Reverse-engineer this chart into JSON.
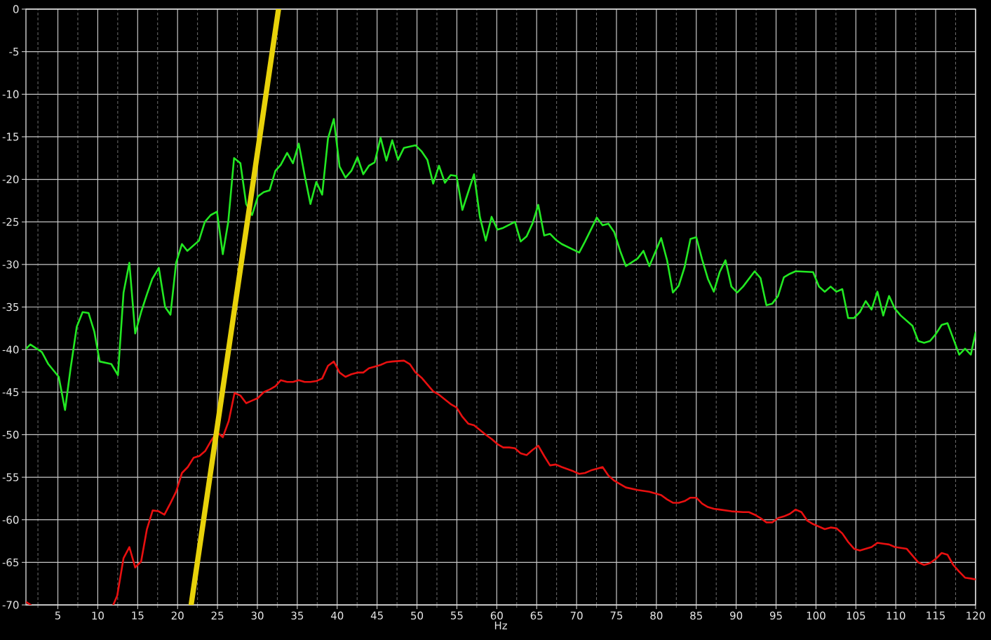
{
  "chart_data": {
    "type": "line",
    "xlabel": "Hz",
    "xlim": [
      1,
      120
    ],
    "ylim": [
      -70,
      0
    ],
    "xticks": [
      {
        "value": 2.5,
        "label": null
      },
      5,
      {
        "value": 7.5,
        "label": null
      },
      10,
      {
        "value": 12.5,
        "label": null
      },
      15,
      {
        "value": 17.5,
        "label": null
      },
      20,
      {
        "value": 22.5,
        "label": null
      },
      25,
      {
        "value": 27.5,
        "label": null
      },
      30,
      {
        "value": 32.5,
        "label": null
      },
      35,
      {
        "value": 37.5,
        "label": null
      },
      40,
      {
        "value": 42.5,
        "label": null
      },
      45,
      {
        "value": 47.5,
        "label": null
      },
      50,
      {
        "value": 52.5,
        "label": null
      },
      55,
      {
        "value": 57.5,
        "label": null
      },
      60,
      {
        "value": 62.5,
        "label": null
      },
      65,
      {
        "value": 67.5,
        "label": null
      },
      70,
      {
        "value": 72.5,
        "label": null
      },
      75,
      {
        "value": 77.5,
        "label": null
      },
      80,
      {
        "value": 82.5,
        "label": null
      },
      85,
      {
        "value": 87.5,
        "label": null
      },
      90,
      {
        "value": 92.5,
        "label": null
      },
      95,
      {
        "value": 97.5,
        "label": null
      },
      100,
      {
        "value": 102.5,
        "label": null
      },
      105,
      {
        "value": 107.5,
        "label": null
      },
      110,
      {
        "value": 112.5,
        "label": null
      },
      115,
      {
        "value": 117.5,
        "label": null
      },
      120
    ],
    "yticks": [
      0,
      -5,
      -10,
      -15,
      -20,
      -25,
      -30,
      -35,
      -40,
      -45,
      -50,
      -55,
      -60,
      -65,
      -70
    ],
    "grid": true,
    "series": [
      {
        "color": "#22e822",
        "x": [
          1.02,
          1.55,
          3.0,
          3.8,
          5.11,
          5.9,
          6.58,
          7.37,
          8.1,
          8.84,
          9.57,
          10.24,
          11.7,
          12.53,
          13.23,
          13.96,
          14.69,
          15.43,
          16.16,
          16.83,
          17.65,
          18.44,
          19.11,
          19.82,
          20.55,
          21.22,
          22.68,
          23.42,
          24.15,
          24.94,
          25.67,
          26.35,
          27.08,
          27.87,
          28.6,
          29.33,
          30.06,
          30.8,
          31.53,
          32.26,
          32.93,
          33.73,
          34.46,
          35.19,
          35.92,
          36.65,
          37.39,
          38.12,
          38.85,
          39.58,
          40.3,
          41.04,
          41.78,
          42.54,
          43.27,
          43.98,
          44.7,
          45.44,
          46.17,
          46.9,
          47.63,
          48.37,
          49.83,
          50.57,
          51.3,
          52.03,
          52.76,
          53.5,
          54.22,
          54.96,
          55.69,
          56.42,
          57.15,
          57.88,
          58.62,
          59.35,
          60.08,
          60.81,
          62.28,
          63.0,
          63.74,
          64.47,
          65.2,
          65.94,
          66.67,
          67.4,
          68.14,
          70.33,
          71.06,
          71.8,
          72.53,
          73.26,
          73.99,
          74.72,
          75.46,
          76.18,
          77.65,
          78.38,
          79.12,
          80.6,
          81.34,
          82.07,
          82.8,
          83.54,
          84.27,
          85.0,
          85.73,
          86.46,
          87.2,
          87.93,
          88.66,
          89.4,
          90.13,
          90.86,
          92.32,
          93.05,
          93.79,
          94.52,
          95.25,
          95.98,
          96.72,
          97.45,
          99.64,
          100.38,
          101.1,
          101.84,
          102.57,
          103.3,
          104.03,
          104.77,
          105.5,
          106.23,
          106.97,
          107.7,
          108.43,
          109.16,
          109.89,
          110.62,
          112.09,
          112.82,
          113.55,
          114.28,
          115.0,
          115.75,
          116.48,
          117.2,
          117.95,
          118.68,
          119.4,
          120.0
        ],
        "values": [
          -39.9,
          -39.4,
          -40.3,
          -41.7,
          -43.2,
          -47.1,
          -42.3,
          -37.3,
          -35.6,
          -35.7,
          -37.9,
          -41.4,
          -41.7,
          -43.0,
          -33.3,
          -29.8,
          -38.1,
          -35.6,
          -33.5,
          -31.7,
          -30.4,
          -35.0,
          -35.9,
          -29.8,
          -27.6,
          -28.4,
          -27.2,
          -25.0,
          -24.2,
          -23.8,
          -28.8,
          -25.0,
          -17.5,
          -18.1,
          -22.9,
          -24.2,
          -22.0,
          -21.5,
          -21.3,
          -19.0,
          -18.3,
          -16.9,
          -18.1,
          -15.8,
          -19.5,
          -22.9,
          -20.3,
          -21.8,
          -15.2,
          -12.9,
          -18.5,
          -19.8,
          -19.0,
          -17.4,
          -19.4,
          -18.4,
          -18.0,
          -15.1,
          -17.8,
          -15.4,
          -17.7,
          -16.3,
          -16.0,
          -16.7,
          -17.7,
          -20.5,
          -18.4,
          -20.4,
          -19.5,
          -19.6,
          -23.6,
          -21.5,
          -19.4,
          -24.4,
          -27.2,
          -24.4,
          -25.9,
          -25.7,
          -25.0,
          -27.3,
          -26.7,
          -25.2,
          -23.0,
          -26.6,
          -26.4,
          -27.1,
          -27.6,
          -28.6,
          -27.3,
          -25.9,
          -24.5,
          -25.4,
          -25.2,
          -26.2,
          -28.4,
          -30.2,
          -29.3,
          -28.4,
          -30.2,
          -26.9,
          -29.5,
          -33.3,
          -32.5,
          -30.3,
          -27.0,
          -26.8,
          -29.4,
          -31.7,
          -33.2,
          -30.9,
          -29.5,
          -32.6,
          -33.3,
          -32.6,
          -30.8,
          -31.6,
          -34.8,
          -34.6,
          -33.7,
          -31.5,
          -31.1,
          -30.8,
          -30.9,
          -32.6,
          -33.2,
          -32.6,
          -33.2,
          -32.9,
          -36.3,
          -36.3,
          -35.6,
          -34.3,
          -35.3,
          -33.2,
          -36.0,
          -33.7,
          -35.2,
          -36.0,
          -37.2,
          -39.0,
          -39.2,
          -39.0,
          -38.2,
          -37.1,
          -36.9,
          -38.7,
          -40.6,
          -39.9,
          -40.6,
          -38.0
        ]
      },
      {
        "color": "#e81010",
        "x": [
          1.1,
          1.6,
          6,
          11.94,
          12.44,
          13.23,
          13.96,
          14.69,
          15.43,
          16.16,
          16.88,
          17.62,
          18.35,
          19.08,
          19.82,
          20.55,
          21.28,
          22.02,
          22.74,
          23.48,
          24.21,
          24.94,
          25.67,
          26.41,
          27.14,
          27.87,
          28.6,
          29.33,
          30.06,
          30.8,
          31.53,
          32.26,
          32.93,
          33.73,
          34.46,
          35.19,
          35.92,
          36.65,
          37.39,
          38.12,
          38.85,
          39.58,
          40.3,
          41.04,
          41.78,
          42.54,
          43.27,
          43.98,
          44.7,
          45.44,
          46.17,
          46.9,
          48.37,
          49.1,
          49.83,
          50.57,
          51.3,
          52.03,
          52.76,
          54.22,
          54.96,
          55.69,
          56.42,
          57.15,
          58.62,
          59.35,
          60.08,
          60.81,
          61.55,
          62.28,
          63.0,
          63.74,
          64.47,
          65.2,
          65.94,
          66.67,
          67.4,
          68.14,
          69.6,
          70.33,
          71.06,
          71.8,
          72.53,
          73.26,
          73.99,
          74.72,
          75.46,
          76.18,
          77.65,
          78.38,
          79.12,
          80.6,
          81.34,
          82.07,
          82.8,
          83.54,
          84.27,
          85.0,
          85.73,
          86.46,
          87.2,
          87.93,
          89.4,
          90.86,
          91.59,
          92.32,
          93.05,
          93.79,
          94.52,
          95.25,
          95.98,
          96.72,
          97.45,
          98.18,
          98.91,
          99.64,
          101.1,
          101.84,
          102.57,
          103.3,
          104.03,
          104.77,
          105.5,
          106.23,
          106.97,
          107.7,
          108.43,
          109.16,
          109.89,
          111.36,
          112.09,
          112.82,
          113.55,
          114.28,
          115.0,
          115.75,
          116.48,
          117.2,
          117.95,
          118.68,
          119.4,
          120.0
        ],
        "values": [
          -69.7,
          -70,
          null,
          -70,
          -68.9,
          -64.5,
          -63.2,
          -65.6,
          -64.9,
          -61.1,
          -58.9,
          -59.0,
          -59.4,
          -58.1,
          -56.7,
          -54.5,
          -53.8,
          -52.7,
          -52.5,
          -51.9,
          -50.7,
          -49.7,
          -50.3,
          -48.4,
          -45.1,
          -45.4,
          -46.3,
          -46.0,
          -45.7,
          -45.0,
          -44.7,
          -44.3,
          -43.6,
          -43.8,
          -43.8,
          -43.6,
          -43.8,
          -43.8,
          -43.7,
          -43.4,
          -41.9,
          -41.4,
          -42.7,
          -43.2,
          -42.9,
          -42.7,
          -42.7,
          -42.2,
          -42.0,
          -41.8,
          -41.5,
          -41.4,
          -41.3,
          -41.7,
          -42.7,
          -43.3,
          -44.1,
          -44.9,
          -45.3,
          -46.4,
          -46.8,
          -47.9,
          -48.7,
          -48.9,
          -50.0,
          -50.5,
          -51.1,
          -51.5,
          -51.5,
          -51.6,
          -52.2,
          -52.4,
          -51.8,
          -51.3,
          -52.5,
          -53.6,
          -53.5,
          -53.8,
          -54.3,
          -54.6,
          -54.5,
          -54.2,
          -54.0,
          -53.8,
          -54.8,
          -55.4,
          -55.8,
          -56.2,
          -56.5,
          -56.6,
          -56.7,
          -57.1,
          -57.6,
          -58.0,
          -58.0,
          -57.8,
          -57.4,
          -57.4,
          -58.1,
          -58.5,
          -58.7,
          -58.8,
          -59.0,
          -59.1,
          -59.1,
          -59.4,
          -59.8,
          -60.3,
          -60.3,
          -59.8,
          -59.6,
          -59.3,
          -58.8,
          -59.1,
          -60.1,
          -60.5,
          -61.1,
          -60.9,
          -61.0,
          -61.6,
          -62.6,
          -63.4,
          -63.6,
          -63.4,
          -63.2,
          -62.7,
          -62.8,
          -62.9,
          -63.2,
          -63.4,
          -64.2,
          -65.0,
          -65.3,
          -65.1,
          -64.6,
          -63.9,
          -64.1,
          -65.3,
          -66.1,
          -66.8,
          -66.9,
          -67.0
        ]
      },
      {
        "color": "#e8d20a",
        "x": [
          21.7,
          32.65
        ],
        "values": [
          -70,
          0
        ]
      }
    ]
  }
}
